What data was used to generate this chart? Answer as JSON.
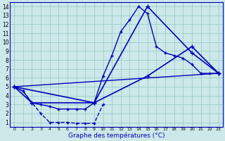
{
  "title": "Graphe des températures (°C)",
  "bg_color": "#cce8e8",
  "grid_color": "#99cccc",
  "line_color": "#0000bb",
  "xlim": [
    -0.5,
    23.5
  ],
  "ylim": [
    0.5,
    14.5
  ],
  "xticks": [
    0,
    1,
    2,
    3,
    4,
    5,
    6,
    7,
    8,
    9,
    10,
    11,
    12,
    13,
    14,
    15,
    16,
    17,
    18,
    19,
    20,
    21,
    22,
    23
  ],
  "yticks": [
    1,
    2,
    3,
    4,
    5,
    6,
    7,
    8,
    9,
    10,
    11,
    12,
    13,
    14
  ],
  "curve1_x": [
    0,
    1,
    2,
    3,
    4,
    5,
    6,
    7,
    8,
    9,
    10,
    11,
    12,
    13,
    14,
    15,
    16,
    17,
    18,
    19,
    20,
    21,
    22,
    23
  ],
  "curve1_y": [
    5.0,
    4.5,
    3.2,
    3.0,
    2.8,
    2.5,
    2.5,
    2.5,
    2.5,
    3.2,
    6.2,
    8.5,
    11.2,
    12.5,
    14.0,
    13.2,
    9.5,
    8.8,
    8.5,
    8.2,
    7.5,
    6.5,
    6.5,
    6.5
  ],
  "curve2_x": [
    0,
    2,
    9,
    15,
    20,
    23
  ],
  "curve2_y": [
    5.0,
    3.2,
    3.2,
    14.0,
    8.8,
    6.5
  ],
  "curve3_x": [
    0,
    9,
    15,
    20,
    23
  ],
  "curve3_y": [
    5.0,
    3.2,
    6.2,
    9.5,
    6.5
  ],
  "curve4_x": [
    0,
    23
  ],
  "curve4_y": [
    5.0,
    6.5
  ],
  "curve_min_x": [
    0,
    1,
    2,
    3,
    4,
    5,
    6,
    7,
    8,
    9,
    10
  ],
  "curve_min_y": [
    5.0,
    4.5,
    3.2,
    2.0,
    1.0,
    1.0,
    1.0,
    0.9,
    0.9,
    0.9,
    3.0
  ],
  "xlabel_fontsize": 6.5,
  "tick_fontsize": 5.5
}
